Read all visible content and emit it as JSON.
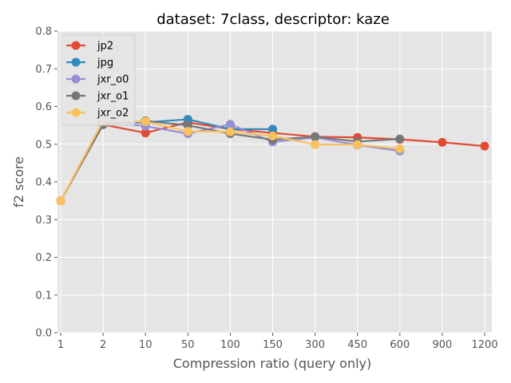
{
  "chart_data": {
    "type": "line",
    "title": "dataset: 7class, descriptor: kaze",
    "xlabel": "Compression ratio (query only)",
    "ylabel": "f2 score",
    "categories": [
      "1",
      "2",
      "10",
      "50",
      "100",
      "150",
      "300",
      "450",
      "600",
      "900",
      "1200"
    ],
    "ylim": [
      0.0,
      0.8
    ],
    "yticks": [
      "0.0",
      "0.1",
      "0.2",
      "0.3",
      "0.4",
      "0.5",
      "0.6",
      "0.7",
      "0.8"
    ],
    "grid": true,
    "legend_position": "top-left",
    "series": [
      {
        "name": "jp2",
        "color": "#E24A33",
        "values": [
          0.35,
          0.552,
          0.53,
          0.558,
          0.54,
          0.53,
          0.52,
          0.518,
          0.513,
          0.505,
          0.495
        ]
      },
      {
        "name": "jpg",
        "color": "#348ABD",
        "values": [
          0.35,
          0.555,
          0.558,
          0.566,
          0.54,
          0.54,
          null,
          null,
          null,
          null,
          null
        ]
      },
      {
        "name": "jxr_o0",
        "color": "#988ED5",
        "values": [
          0.35,
          0.56,
          0.548,
          0.528,
          0.553,
          0.506,
          0.518,
          0.498,
          0.482,
          null,
          null
        ]
      },
      {
        "name": "jxr_o1",
        "color": "#777777",
        "values": [
          0.35,
          0.552,
          0.562,
          0.55,
          0.528,
          0.512,
          0.52,
          0.507,
          0.514,
          null,
          null
        ]
      },
      {
        "name": "jxr_o2",
        "color": "#FBC15E",
        "values": [
          0.35,
          0.562,
          0.56,
          0.534,
          0.533,
          0.522,
          0.499,
          0.499,
          0.488,
          null,
          null
        ]
      }
    ]
  }
}
